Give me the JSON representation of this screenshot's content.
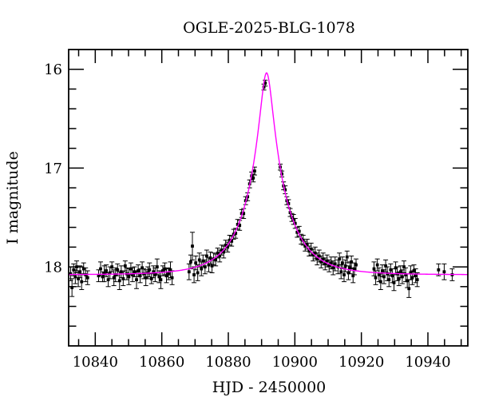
{
  "page": {
    "background": "#ffffff"
  },
  "chart_data": {
    "type": "scatter",
    "title": "OGLE-2025-BLG-1078",
    "xlabel": "HJD - 2450000",
    "ylabel": "I magnitude",
    "xlim": [
      10832,
      10952
    ],
    "ylim_mag": [
      15.8,
      18.8
    ],
    "y_axis_inverted": true,
    "grid": false,
    "x_major_ticks": [
      10840,
      10860,
      10880,
      10900,
      10920,
      10940
    ],
    "x_tick_labels": [
      "10840",
      "10860",
      "10880",
      "10900",
      "10920",
      "10940"
    ],
    "x_minor_step": 5,
    "y_major_ticks": [
      16,
      17,
      18
    ],
    "y_tick_labels": [
      "16",
      "17",
      "18"
    ],
    "y_minor_step": 0.2,
    "point_color": "#000000",
    "curve_color": "#ff00ff",
    "model": {
      "type": "paczynski_microlensing",
      "t0": 10891.5,
      "tE": 11.5,
      "u0": 0.1535,
      "I_base": 18.08,
      "I_peak": 16.04
    },
    "points_format": [
      "hjd_minus_2450000",
      "I_mag",
      "error_mag"
    ],
    "points": [
      [
        10832.6,
        18.07,
        0.07
      ],
      [
        10833.0,
        18.21,
        0.09
      ],
      [
        10833.5,
        18.03,
        0.06
      ],
      [
        10834.0,
        18.1,
        0.07
      ],
      [
        10834.4,
        18.0,
        0.06
      ],
      [
        10834.9,
        18.12,
        0.08
      ],
      [
        10835.4,
        18.05,
        0.06
      ],
      [
        10835.9,
        18.15,
        0.08
      ],
      [
        10836.5,
        18.02,
        0.06
      ],
      [
        10837.1,
        18.08,
        0.07
      ],
      [
        10837.7,
        18.11,
        0.07
      ],
      [
        10841.0,
        18.09,
        0.06
      ],
      [
        10841.6,
        18.02,
        0.07
      ],
      [
        10842.2,
        18.1,
        0.05
      ],
      [
        10842.7,
        18.07,
        0.08
      ],
      [
        10843.3,
        18.04,
        0.06
      ],
      [
        10843.9,
        18.13,
        0.07
      ],
      [
        10844.4,
        18.06,
        0.06
      ],
      [
        10845.0,
        18.0,
        0.05
      ],
      [
        10845.6,
        18.11,
        0.08
      ],
      [
        10846.1,
        18.08,
        0.07
      ],
      [
        10846.7,
        18.03,
        0.06
      ],
      [
        10847.3,
        18.14,
        0.09
      ],
      [
        10847.8,
        18.05,
        0.06
      ],
      [
        10848.4,
        18.12,
        0.07
      ],
      [
        10849.0,
        17.99,
        0.05
      ],
      [
        10849.5,
        18.07,
        0.06
      ],
      [
        10850.1,
        18.1,
        0.08
      ],
      [
        10850.7,
        18.02,
        0.06
      ],
      [
        10851.2,
        18.08,
        0.07
      ],
      [
        10851.8,
        18.05,
        0.05
      ],
      [
        10852.4,
        18.13,
        0.09
      ],
      [
        10852.9,
        18.04,
        0.06
      ],
      [
        10853.5,
        18.09,
        0.07
      ],
      [
        10854.1,
        18.01,
        0.06
      ],
      [
        10854.6,
        18.07,
        0.05
      ],
      [
        10855.2,
        18.11,
        0.08
      ],
      [
        10855.8,
        18.06,
        0.06
      ],
      [
        10856.3,
        18.03,
        0.07
      ],
      [
        10856.9,
        18.12,
        0.05
      ],
      [
        10857.5,
        18.05,
        0.06
      ],
      [
        10858.0,
        18.08,
        0.07
      ],
      [
        10858.6,
        18.0,
        0.08
      ],
      [
        10859.2,
        18.1,
        0.06
      ],
      [
        10859.7,
        18.13,
        0.09
      ],
      [
        10860.3,
        18.04,
        0.05
      ],
      [
        10860.9,
        18.02,
        0.06
      ],
      [
        10861.4,
        18.09,
        0.07
      ],
      [
        10862.0,
        18.07,
        0.06
      ],
      [
        10862.6,
        18.03,
        0.08
      ],
      [
        10863.1,
        18.11,
        0.07
      ],
      [
        10868.2,
        18.05,
        0.08
      ],
      [
        10868.7,
        17.95,
        0.07
      ],
      [
        10869.2,
        17.79,
        0.14
      ],
      [
        10869.7,
        18.08,
        0.08
      ],
      [
        10870.2,
        17.96,
        0.07
      ],
      [
        10870.8,
        18.06,
        0.08
      ],
      [
        10871.3,
        17.93,
        0.07
      ],
      [
        10871.9,
        18.02,
        0.07
      ],
      [
        10872.4,
        17.94,
        0.06
      ],
      [
        10873.0,
        18.0,
        0.07
      ],
      [
        10873.5,
        17.89,
        0.06
      ],
      [
        10874.1,
        17.98,
        0.07
      ],
      [
        10874.6,
        17.91,
        0.06
      ],
      [
        10875.1,
        17.99,
        0.07
      ],
      [
        10875.6,
        17.92,
        0.06
      ],
      [
        10876.2,
        17.93,
        0.06
      ],
      [
        10876.8,
        17.86,
        0.05
      ],
      [
        10877.4,
        17.89,
        0.06
      ],
      [
        10878.0,
        17.83,
        0.05
      ],
      [
        10878.6,
        17.85,
        0.06
      ],
      [
        10879.2,
        17.78,
        0.05
      ],
      [
        10879.8,
        17.8,
        0.05
      ],
      [
        10880.4,
        17.73,
        0.05
      ],
      [
        10881.0,
        17.74,
        0.05
      ],
      [
        10881.6,
        17.67,
        0.05
      ],
      [
        10882.2,
        17.66,
        0.05
      ],
      [
        10882.8,
        17.57,
        0.05
      ],
      [
        10883.4,
        17.58,
        0.05
      ],
      [
        10884.0,
        17.46,
        0.04
      ],
      [
        10884.6,
        17.46,
        0.05
      ],
      [
        10885.2,
        17.33,
        0.04
      ],
      [
        10885.8,
        17.29,
        0.04
      ],
      [
        10886.4,
        17.16,
        0.04
      ],
      [
        10887.0,
        17.08,
        0.04
      ],
      [
        10887.5,
        17.1,
        0.04
      ],
      [
        10887.9,
        17.03,
        0.04
      ],
      [
        10890.7,
        16.18,
        0.03
      ],
      [
        10891.1,
        16.14,
        0.03
      ],
      [
        10895.6,
        16.99,
        0.03
      ],
      [
        10896.1,
        17.06,
        0.03
      ],
      [
        10896.6,
        17.18,
        0.04
      ],
      [
        10897.1,
        17.22,
        0.04
      ],
      [
        10897.6,
        17.33,
        0.04
      ],
      [
        10898.1,
        17.36,
        0.04
      ],
      [
        10898.6,
        17.45,
        0.04
      ],
      [
        10899.1,
        17.5,
        0.04
      ],
      [
        10899.6,
        17.52,
        0.05
      ],
      [
        10900.1,
        17.56,
        0.05
      ],
      [
        10900.7,
        17.65,
        0.05
      ],
      [
        10901.3,
        17.64,
        0.05
      ],
      [
        10901.9,
        17.72,
        0.05
      ],
      [
        10902.5,
        17.73,
        0.05
      ],
      [
        10903.1,
        17.79,
        0.05
      ],
      [
        10903.7,
        17.77,
        0.05
      ],
      [
        10904.3,
        17.84,
        0.05
      ],
      [
        10904.9,
        17.82,
        0.06
      ],
      [
        10905.5,
        17.88,
        0.06
      ],
      [
        10906.1,
        17.86,
        0.06
      ],
      [
        10906.7,
        17.92,
        0.06
      ],
      [
        10907.3,
        17.89,
        0.06
      ],
      [
        10907.9,
        17.95,
        0.06
      ],
      [
        10908.5,
        17.92,
        0.06
      ],
      [
        10909.1,
        17.97,
        0.06
      ],
      [
        10909.7,
        17.94,
        0.06
      ],
      [
        10910.3,
        17.99,
        0.06
      ],
      [
        10910.9,
        17.96,
        0.06
      ],
      [
        10911.5,
        18.01,
        0.07
      ],
      [
        10912.1,
        17.97,
        0.07
      ],
      [
        10913.0,
        18.0,
        0.07
      ],
      [
        10913.4,
        17.92,
        0.06
      ],
      [
        10913.9,
        18.05,
        0.07
      ],
      [
        10914.3,
        17.96,
        0.06
      ],
      [
        10914.8,
        18.08,
        0.07
      ],
      [
        10915.2,
        17.99,
        0.06
      ],
      [
        10915.7,
        17.9,
        0.06
      ],
      [
        10916.1,
        18.06,
        0.07
      ],
      [
        10916.6,
        18.01,
        0.06
      ],
      [
        10917.0,
        17.95,
        0.06
      ],
      [
        10917.5,
        18.09,
        0.07
      ],
      [
        10917.9,
        18.02,
        0.06
      ],
      [
        10918.4,
        17.98,
        0.06
      ],
      [
        10923.8,
        18.02,
        0.07
      ],
      [
        10924.3,
        18.11,
        0.07
      ],
      [
        10924.8,
        17.98,
        0.06
      ],
      [
        10925.3,
        18.08,
        0.07
      ],
      [
        10925.8,
        18.15,
        0.08
      ],
      [
        10926.3,
        18.04,
        0.06
      ],
      [
        10926.8,
        18.1,
        0.07
      ],
      [
        10927.3,
        17.99,
        0.06
      ],
      [
        10927.8,
        18.07,
        0.07
      ],
      [
        10928.3,
        18.13,
        0.07
      ],
      [
        10928.8,
        18.03,
        0.06
      ],
      [
        10929.3,
        18.09,
        0.07
      ],
      [
        10929.8,
        18.16,
        0.08
      ],
      [
        10930.3,
        18.01,
        0.06
      ],
      [
        10930.8,
        18.07,
        0.07
      ],
      [
        10931.3,
        18.12,
        0.07
      ],
      [
        10931.8,
        18.05,
        0.06
      ],
      [
        10932.3,
        18.1,
        0.07
      ],
      [
        10932.8,
        18.0,
        0.06
      ],
      [
        10933.3,
        18.08,
        0.07
      ],
      [
        10933.8,
        18.14,
        0.07
      ],
      [
        10934.3,
        18.22,
        0.09
      ],
      [
        10934.8,
        18.06,
        0.07
      ],
      [
        10935.3,
        18.11,
        0.07
      ],
      [
        10935.8,
        18.04,
        0.06
      ],
      [
        10936.3,
        18.09,
        0.07
      ],
      [
        10936.8,
        18.13,
        0.07
      ],
      [
        10943.2,
        18.03,
        0.06
      ],
      [
        10944.9,
        18.05,
        0.08
      ],
      [
        10947.3,
        18.08,
        0.06
      ]
    ]
  }
}
